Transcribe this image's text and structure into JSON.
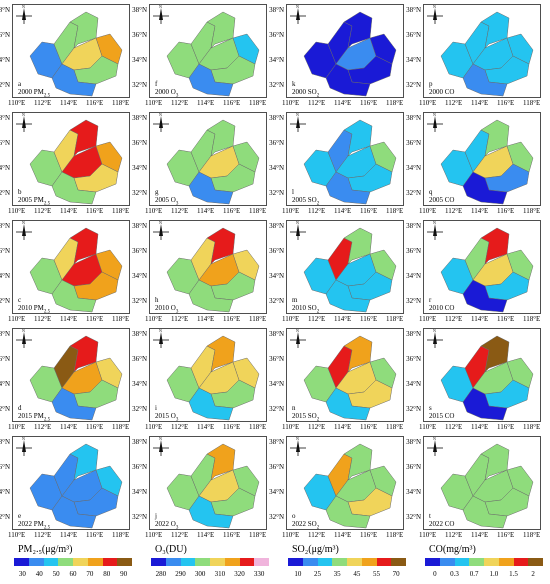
{
  "lat_ticks": [
    "38°N",
    "36°N",
    "34°N",
    "32°N"
  ],
  "lon_ticks": [
    "110°E",
    "112°E",
    "114°E",
    "116°E",
    "118°E"
  ],
  "compass": "N",
  "colors": {
    "c1": "#1a1ad6",
    "c2": "#3a8cf0",
    "c3": "#24c4f0",
    "c4": "#8fdc7c",
    "c5": "#f0d45a",
    "c6": "#f0a21c",
    "c7": "#e61b1b",
    "c8": "#8a5a14"
  },
  "rows": [
    [
      {
        "letter": "a",
        "label": "2000 PM",
        "sub": "2.5",
        "pal": [
          "c2",
          "c4",
          "c4",
          "c5",
          "c6",
          "c4",
          "c2"
        ]
      },
      {
        "letter": "f",
        "label": "2000 O",
        "sub": "3",
        "pal": [
          "c4",
          "c4",
          "c4",
          "c4",
          "c3",
          "c4",
          "c2"
        ]
      },
      {
        "letter": "k",
        "label": "2000 SO",
        "sub": "2",
        "pal": [
          "c1",
          "c1",
          "c1",
          "c2",
          "c1",
          "c1",
          "c1"
        ]
      },
      {
        "letter": "p",
        "label": "2000 CO",
        "sub": "",
        "pal": [
          "c3",
          "c3",
          "c3",
          "c3",
          "c3",
          "c3",
          "c2"
        ]
      }
    ],
    [
      {
        "letter": "b",
        "label": "2005 PM",
        "sub": "2.5",
        "pal": [
          "c4",
          "c5",
          "c7",
          "c7",
          "c6",
          "c5",
          "c4"
        ]
      },
      {
        "letter": "g",
        "label": "2005 O",
        "sub": "3",
        "pal": [
          "c4",
          "c4",
          "c4",
          "c5",
          "c4",
          "c4",
          "c2"
        ]
      },
      {
        "letter": "l",
        "label": "2005 SO",
        "sub": "2",
        "pal": [
          "c3",
          "c2",
          "c3",
          "c3",
          "c4",
          "c3",
          "c2"
        ]
      },
      {
        "letter": "q",
        "label": "2005 CO",
        "sub": "",
        "pal": [
          "c3",
          "c3",
          "c4",
          "c5",
          "c4",
          "c2",
          "c1"
        ]
      }
    ],
    [
      {
        "letter": "c",
        "label": "2010 PM",
        "sub": "2.5",
        "pal": [
          "c4",
          "c5",
          "c7",
          "c7",
          "c6",
          "c6",
          "c4"
        ]
      },
      {
        "letter": "h",
        "label": "2010 O",
        "sub": "3",
        "pal": [
          "c4",
          "c5",
          "c7",
          "c6",
          "c5",
          "c4",
          "c4"
        ]
      },
      {
        "letter": "m",
        "label": "2010 SO",
        "sub": "2",
        "pal": [
          "c3",
          "c7",
          "c4",
          "c3",
          "c4",
          "c3",
          "c3"
        ]
      },
      {
        "letter": "r",
        "label": "2010 CO",
        "sub": "",
        "pal": [
          "c3",
          "c4",
          "c7",
          "c5",
          "c4",
          "c3",
          "c1"
        ]
      }
    ],
    [
      {
        "letter": "d",
        "label": "2015 PM",
        "sub": "2.5",
        "pal": [
          "c4",
          "c8",
          "c7",
          "c6",
          "c5",
          "c4",
          "c2"
        ]
      },
      {
        "letter": "i",
        "label": "2015 O",
        "sub": "3",
        "pal": [
          "c4",
          "c5",
          "c6",
          "c5",
          "c5",
          "c4",
          "c3"
        ]
      },
      {
        "letter": "n",
        "label": "2015 SO",
        "sub": "2",
        "pal": [
          "c4",
          "c7",
          "c6",
          "c5",
          "c4",
          "c5",
          "c3"
        ]
      },
      {
        "letter": "s",
        "label": "2015 CO",
        "sub": "",
        "pal": [
          "c3",
          "c7",
          "c8",
          "c4",
          "c4",
          "c3",
          "c1"
        ]
      }
    ],
    [
      {
        "letter": "e",
        "label": "2022 PM",
        "sub": "2.5",
        "pal": [
          "c2",
          "c2",
          "c3",
          "c2",
          "c3",
          "c2",
          "c2"
        ]
      },
      {
        "letter": "j",
        "label": "2022 O",
        "sub": "3",
        "pal": [
          "c4",
          "c4",
          "c6",
          "c5",
          "c4",
          "c4",
          "c3"
        ]
      },
      {
        "letter": "o",
        "label": "2022 SO",
        "sub": "2",
        "pal": [
          "c3",
          "c6",
          "c4",
          "c4",
          "c4",
          "c5",
          "c4"
        ]
      },
      {
        "letter": "t",
        "label": "2022 CO",
        "sub": "",
        "pal": [
          "c4",
          "c4",
          "c4",
          "c4",
          "c4",
          "c4",
          "c4"
        ]
      }
    ]
  ],
  "legends": [
    {
      "title": "PM₂.₅(μg/m³)",
      "colors": [
        "#1a1ad6",
        "#3a8cf0",
        "#24c4f0",
        "#8fdc7c",
        "#f0d45a",
        "#f0a21c",
        "#e61b1b",
        "#8a5a14"
      ],
      "ticks": [
        "30",
        "40",
        "50",
        "60",
        "70",
        "80",
        "90"
      ]
    },
    {
      "title": "O₃(DU)",
      "colors": [
        "#1a1ad6",
        "#3a8cf0",
        "#24c4f0",
        "#8fdc7c",
        "#f0d45a",
        "#f0a21c",
        "#e61b1b",
        "#f0b4dc"
      ],
      "ticks": [
        "280",
        "290",
        "300",
        "310",
        "320",
        "330"
      ]
    },
    {
      "title": "SO₂(μg/m³)",
      "colors": [
        "#1a1ad6",
        "#3a8cf0",
        "#24c4f0",
        "#8fdc7c",
        "#f0d45a",
        "#f0a21c",
        "#e61b1b",
        "#8a5a14"
      ],
      "ticks": [
        "10",
        "25",
        "35",
        "45",
        "55",
        "70"
      ]
    },
    {
      "title": "CO(mg/m³)",
      "colors": [
        "#1a1ad6",
        "#3a8cf0",
        "#24c4f0",
        "#8fdc7c",
        "#f0d45a",
        "#f0a21c",
        "#e61b1b",
        "#8a5a14"
      ],
      "ticks": [
        "0",
        "0.3",
        "0.7",
        "1.0",
        "1.5",
        "2"
      ]
    }
  ]
}
